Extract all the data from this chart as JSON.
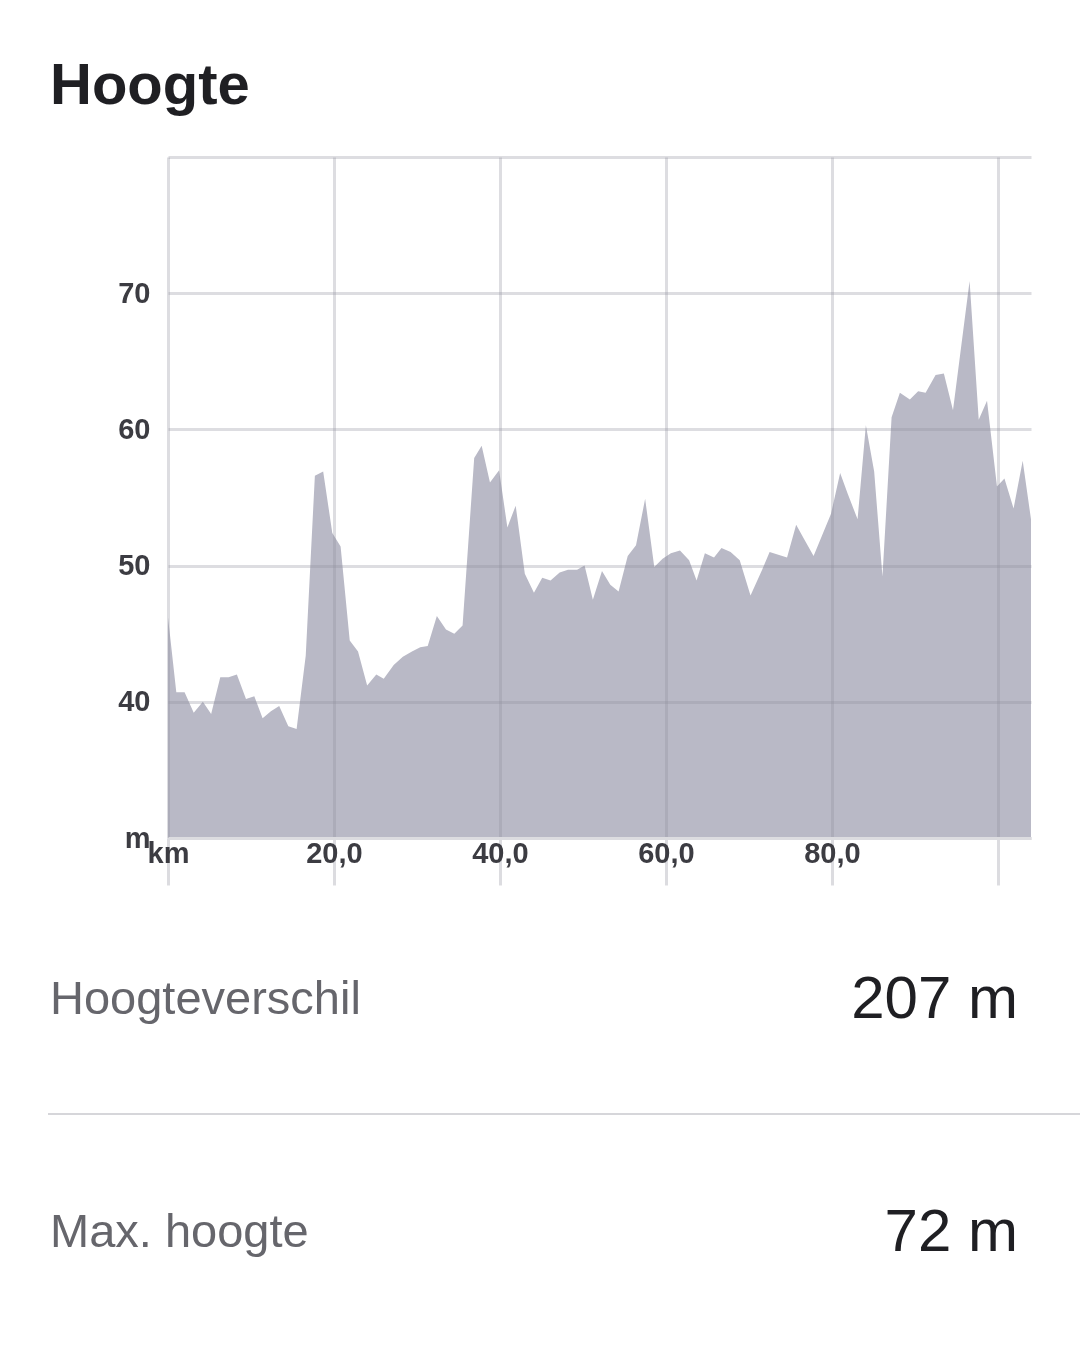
{
  "chart_data": {
    "type": "area",
    "title": "Hoogte",
    "x": [
      0,
      1.0,
      2.0,
      3.1,
      4.2,
      5.2,
      6.3,
      7.3,
      8.3,
      9.4,
      10.4,
      11.4,
      12.4,
      13.4,
      14.5,
      15.5,
      16.6,
      17.7,
      18.7,
      19.8,
      20.8,
      21.9,
      22.9,
      24.0,
      25.1,
      26.0,
      27.2,
      28.3,
      29.4,
      30.4,
      31.3,
      32.4,
      33.5,
      34.5,
      35.5,
      36.9,
      37.8,
      38.8,
      39.9,
      40.9,
      41.9,
      43.0,
      44.1,
      45.1,
      46.1,
      47.2,
      48.2,
      49.3,
      50.2,
      51.2,
      52.3,
      53.3,
      54.3,
      55.4,
      56.4,
      57.5,
      58.6,
      59.6,
      60.6,
      61.7,
      62.8,
      63.7,
      64.7,
      65.8,
      66.7,
      67.8,
      68.9,
      70.2,
      71.6,
      72.5,
      74.6,
      75.7,
      76.6,
      77.8,
      79.9,
      81.0,
      81.9,
      83.1,
      84.1,
      85.1,
      86.1,
      87.2,
      88.2,
      89.4,
      90.4,
      91.3,
      92.5,
      93.5,
      94.6,
      96.6,
      97.7,
      98.7,
      99.9,
      100.8,
      101.9,
      103.0,
      104.0
    ],
    "series": [
      {
        "color": "#b9b9c6",
        "values": [
          46.2,
          40.7,
          40.7,
          39.2,
          40.0,
          39.1,
          41.8,
          41.8,
          42.0,
          40.2,
          40.4,
          38.8,
          39.3,
          39.7,
          38.2,
          38.0,
          43.4,
          56.6,
          56.9,
          52.4,
          51.4,
          44.5,
          43.7,
          41.2,
          42.0,
          41.7,
          42.7,
          43.3,
          43.7,
          44.0,
          44.1,
          46.3,
          45.3,
          45.0,
          45.6,
          57.9,
          58.8,
          56.1,
          57.0,
          52.8,
          54.4,
          49.4,
          48.0,
          49.1,
          48.9,
          49.5,
          49.7,
          49.7,
          50.0,
          47.5,
          49.6,
          48.6,
          48.1,
          50.7,
          51.5,
          54.9,
          49.9,
          50.5,
          50.9,
          51.1,
          50.4,
          48.9,
          50.9,
          50.6,
          51.3,
          51.0,
          50.4,
          47.8,
          49.7,
          51.0,
          50.6,
          53.0,
          52.0,
          50.7,
          53.8,
          56.8,
          55.3,
          53.4,
          60.3,
          56.9,
          49.2,
          60.9,
          62.7,
          62.2,
          62.8,
          62.7,
          64.0,
          64.1,
          61.4,
          70.9,
          60.7,
          62.1,
          55.8,
          56.4,
          54.2,
          57.7,
          53.4
        ]
      }
    ],
    "xlim": [
      0,
      104
    ],
    "xticks": [
      {
        "value": 0,
        "label": "km"
      },
      {
        "value": 20,
        "label": "20,0"
      },
      {
        "value": 40,
        "label": "40,0"
      },
      {
        "value": 60,
        "label": "60,0"
      },
      {
        "value": 80,
        "label": "80,0"
      },
      {
        "value": 100,
        "label": null
      }
    ],
    "ylim": [
      30,
      80
    ],
    "yticks": [
      {
        "value": 30,
        "label": "m"
      },
      40,
      50,
      60,
      70,
      {
        "value": 80,
        "label": null
      }
    ],
    "grid": true,
    "annotations": [
      "Hoogteverschil",
      "207 m",
      "Max. hoogte",
      "72 m"
    ]
  }
}
